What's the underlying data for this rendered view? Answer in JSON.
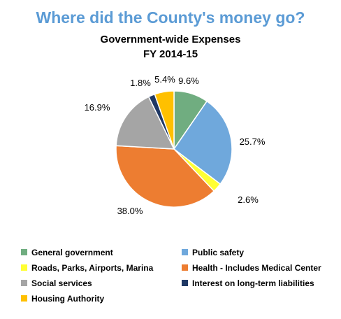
{
  "colors": {
    "title": "#5b9bd5"
  },
  "chart_data": {
    "type": "pie",
    "title": "Where did the County's money go?",
    "subtitle_line1": "Government-wide Expenses",
    "subtitle_line2": "FY 2014-15",
    "legend_placement": "bottom",
    "slices": [
      {
        "name": "General government",
        "value": 9.6,
        "label": "9.6%",
        "color": "#70ad80"
      },
      {
        "name": "Public safety",
        "value": 25.7,
        "label": "25.7%",
        "color": "#6fa8dc"
      },
      {
        "name": "Roads, Parks, Airports, Marina",
        "value": 2.6,
        "label": "2.6%",
        "color": "#ffff33"
      },
      {
        "name": "Health - Includes Medical Center",
        "value": 38.0,
        "label": "38.0%",
        "color": "#ed7d31"
      },
      {
        "name": "Social services",
        "value": 16.9,
        "label": "16.9%",
        "color": "#a5a5a5"
      },
      {
        "name": "Interest on long-term liabilities",
        "value": 1.8,
        "label": "1.8%",
        "color": "#1f3864"
      },
      {
        "name": "Housing Authority",
        "value": 5.4,
        "label": "5.4%",
        "color": "#ffc000"
      }
    ]
  }
}
